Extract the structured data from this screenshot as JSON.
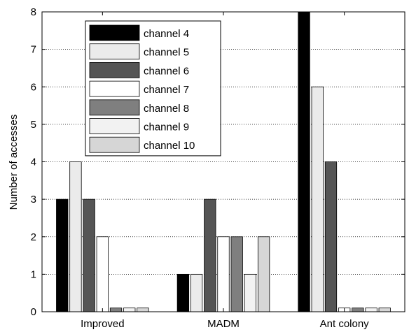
{
  "chart_data": {
    "type": "bar",
    "title": "",
    "xlabel": "",
    "ylabel": "Number of accesses",
    "ylim": [
      0,
      8
    ],
    "yticks": [
      0,
      1,
      2,
      3,
      4,
      5,
      6,
      7,
      8
    ],
    "grid": "horizontal dotted",
    "legend_position": "top-left",
    "categories": [
      "Improved",
      "MADM",
      "Ant colony"
    ],
    "series": [
      {
        "name": "channel 4",
        "color": "#000000",
        "values": [
          3,
          1,
          8
        ]
      },
      {
        "name": "channel 5",
        "color": "#ebebeb",
        "values": [
          4,
          1,
          6
        ]
      },
      {
        "name": "channel 6",
        "color": "#555555",
        "values": [
          3,
          3,
          4
        ]
      },
      {
        "name": "channel 7",
        "color": "#ffffff",
        "values": [
          2,
          2,
          0.1
        ]
      },
      {
        "name": "channel 8",
        "color": "#7f7f7f",
        "values": [
          0.1,
          2,
          0.1
        ]
      },
      {
        "name": "channel 9",
        "color": "#f2f2f2",
        "values": [
          0.1,
          1,
          0.1
        ]
      },
      {
        "name": "channel 10",
        "color": "#d6d6d6",
        "values": [
          0.1,
          2,
          0.1
        ]
      }
    ]
  }
}
